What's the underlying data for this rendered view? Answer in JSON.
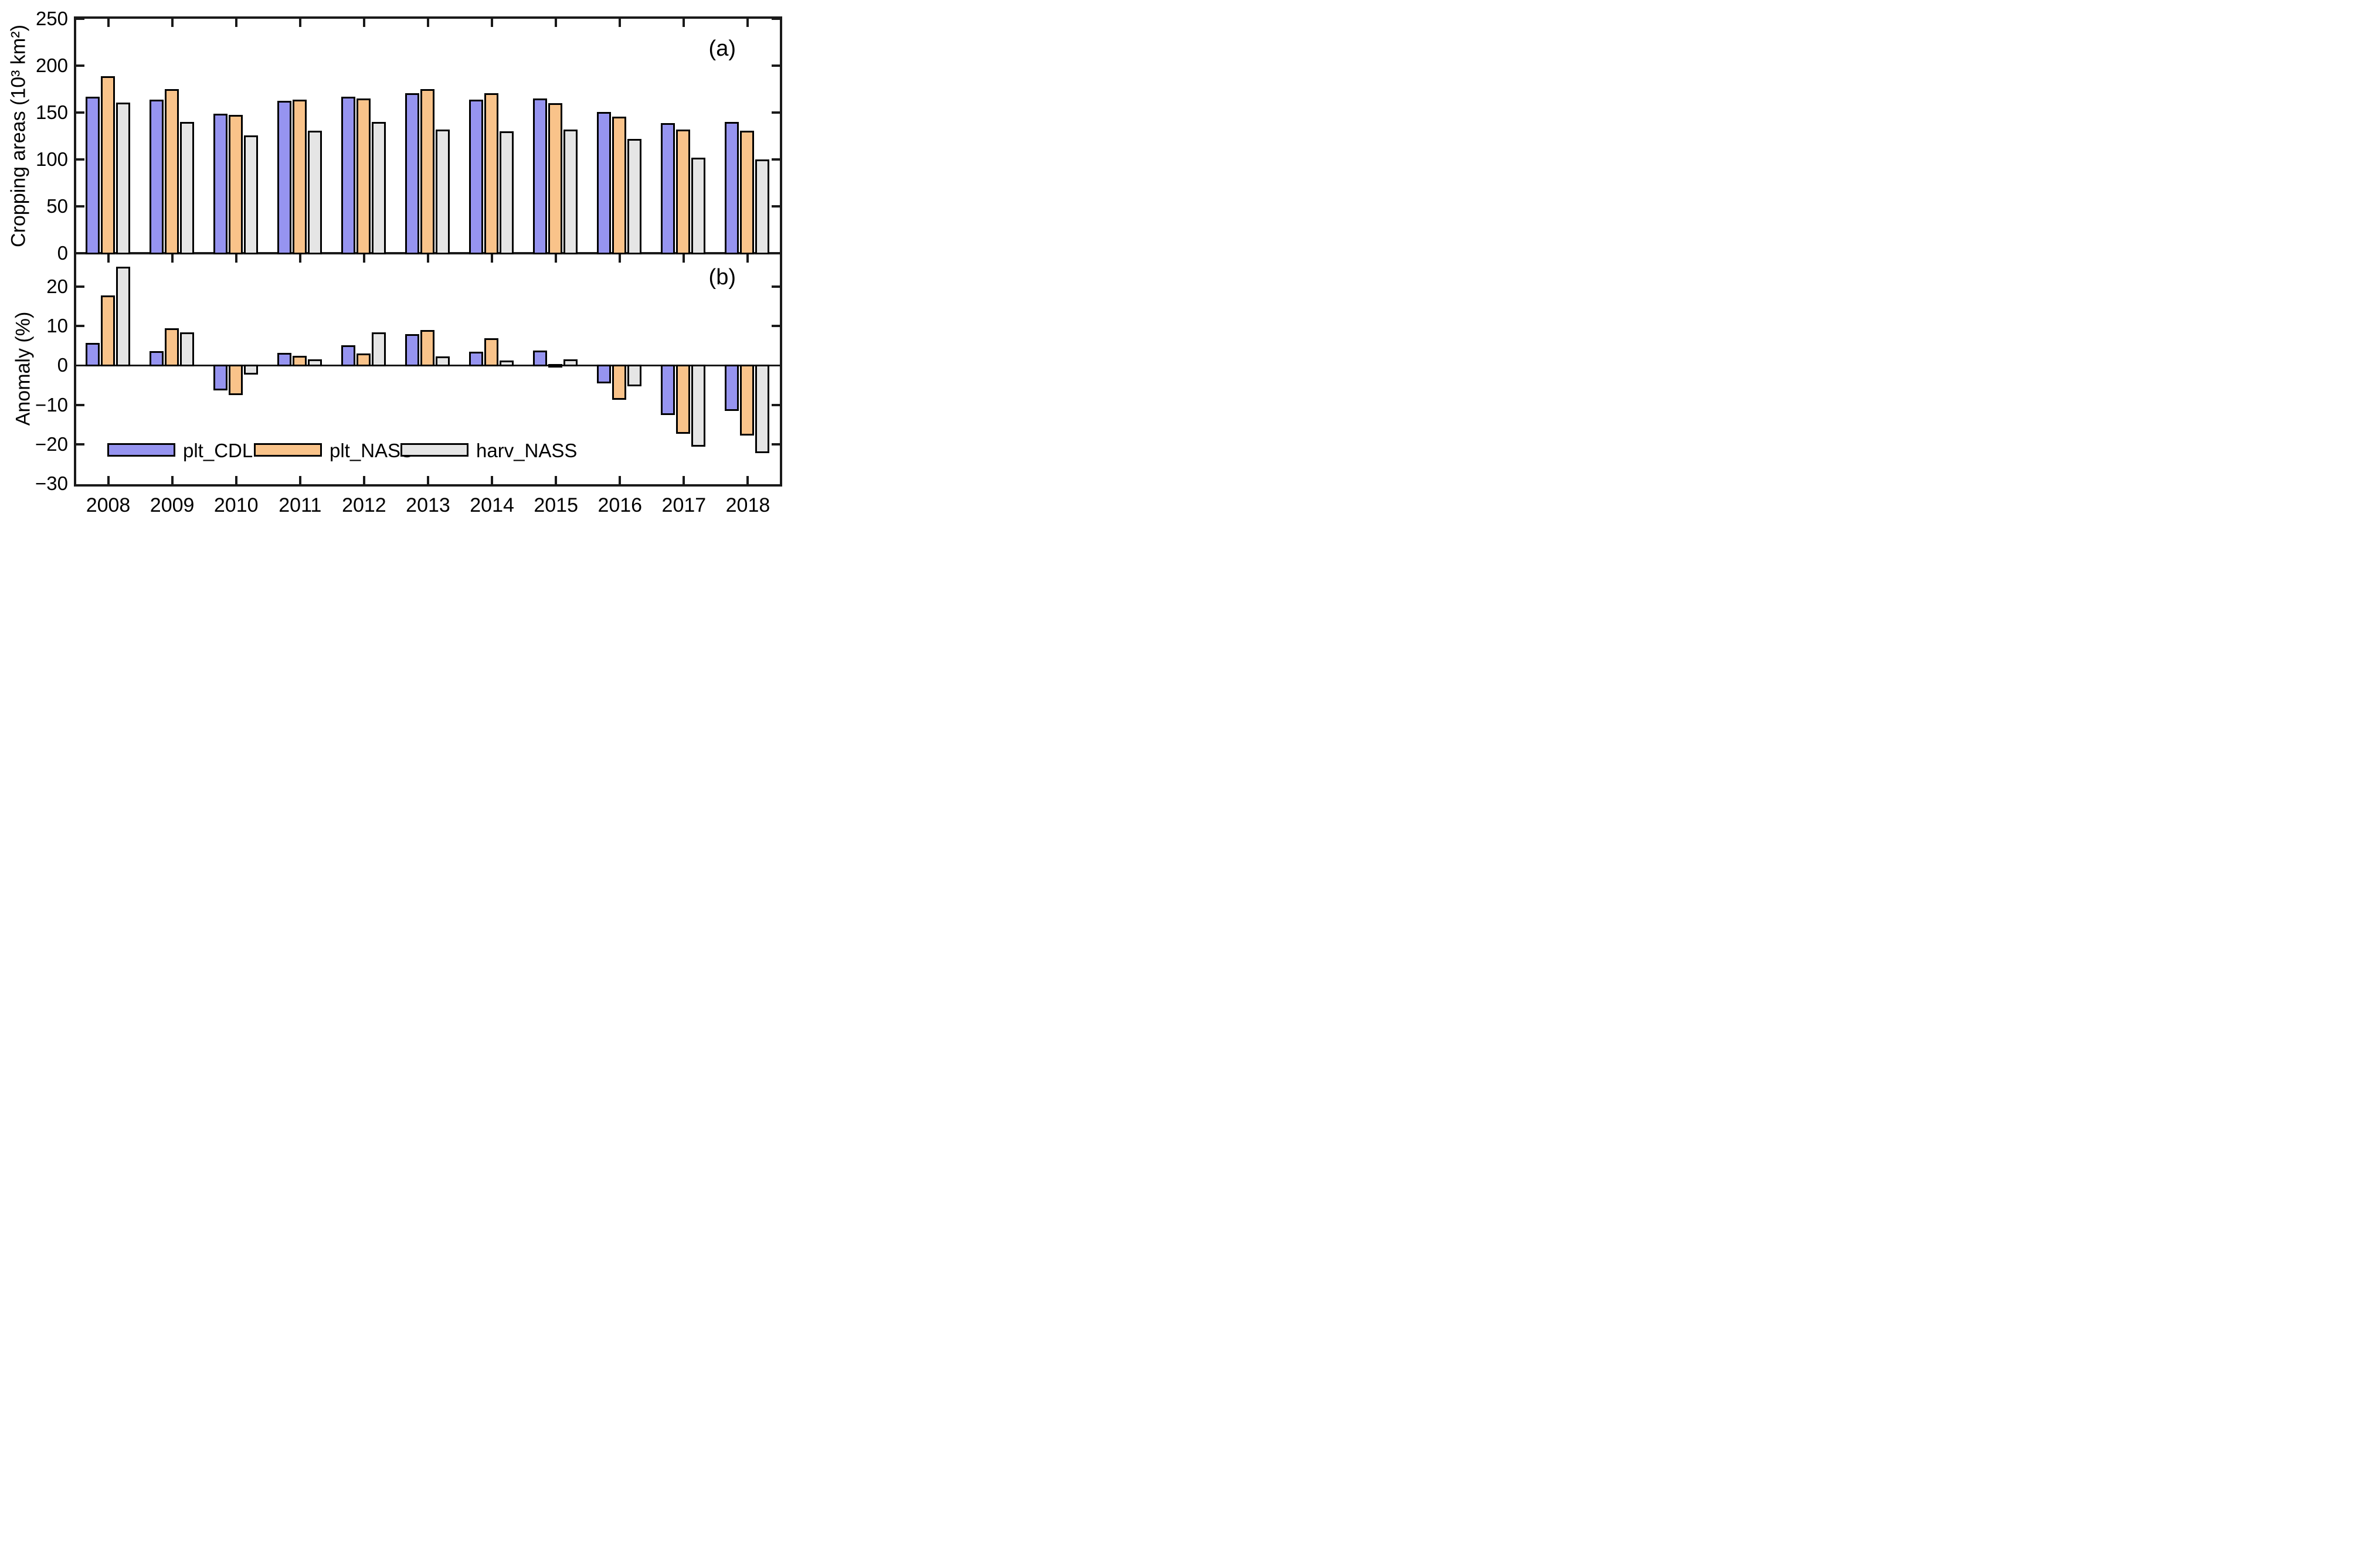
{
  "figure": {
    "panel_a_letter": "(a)",
    "panel_b_letter": "(b)",
    "ylabel_a": "Cropping areas (10³ km²)",
    "ylabel_b": "Anomaly (%)"
  },
  "legend": {
    "items": [
      {
        "label": "plt_CDL",
        "color": "#9694f0"
      },
      {
        "label": "plt_NASS",
        "color": "#f9c38a"
      },
      {
        "label": "harv_NASS",
        "color": "#e5e5e5"
      }
    ]
  },
  "colors": {
    "bar_border": "#000000",
    "axis": "#1a1a1a",
    "background": "#ffffff"
  },
  "chart_data": [
    {
      "type": "bar",
      "panel": "a",
      "title": "",
      "xlabel": "",
      "ylabel": "Cropping areas (10³ km²)",
      "categories": [
        "2008",
        "2009",
        "2010",
        "2011",
        "2012",
        "2013",
        "2014",
        "2015",
        "2016",
        "2017",
        "2018"
      ],
      "series": [
        {
          "name": "plt_CDL",
          "values": [
            168,
            165,
            150,
            164,
            168,
            172,
            165,
            166,
            152,
            140,
            141
          ]
        },
        {
          "name": "plt_NASS",
          "values": [
            190,
            176,
            149,
            165,
            166,
            176,
            172,
            161,
            147,
            133,
            132
          ]
        },
        {
          "name": "harv_NASS",
          "values": [
            162,
            141,
            127,
            132,
            141,
            133,
            131,
            133,
            123,
            103,
            101
          ]
        }
      ],
      "ylim": [
        0,
        250
      ],
      "yticks": [
        {
          "value": 0,
          "label": "0"
        },
        {
          "value": 50,
          "label": "50"
        },
        {
          "value": 100,
          "label": "100"
        },
        {
          "value": 150,
          "label": "150"
        },
        {
          "value": 200,
          "label": "200"
        },
        {
          "value": 250,
          "label": "250"
        }
      ],
      "grid": false,
      "legend_position": "none"
    },
    {
      "type": "bar",
      "panel": "b",
      "title": "",
      "xlabel": "",
      "ylabel": "Anomaly (%)",
      "categories": [
        "2008",
        "2009",
        "2010",
        "2011",
        "2012",
        "2013",
        "2014",
        "2015",
        "2016",
        "2017",
        "2018"
      ],
      "series": [
        {
          "name": "plt_CDL",
          "values": [
            5.7,
            3.7,
            -6.3,
            3.2,
            5.1,
            7.9,
            3.5,
            3.8,
            -4.6,
            -12.6,
            -11.5
          ]
        },
        {
          "name": "plt_NASS",
          "values": [
            17.8,
            9.4,
            -7.6,
            2.5,
            3.0,
            9.0,
            6.9,
            0.4,
            -8.7,
            -17.3,
            -17.8
          ]
        },
        {
          "name": "harv_NASS",
          "values": [
            25.1,
            8.4,
            -2.3,
            1.5,
            8.4,
            2.3,
            1.2,
            1.6,
            -5.3,
            -20.6,
            -22.2
          ]
        }
      ],
      "ylim": [
        -30,
        28.5
      ],
      "yticks": [
        {
          "value": 20,
          "label": "20"
        },
        {
          "value": 10,
          "label": "10"
        },
        {
          "value": 0,
          "label": "0"
        },
        {
          "value": -10,
          "label": "−10"
        },
        {
          "value": -20,
          "label": "−20"
        },
        {
          "value": -30,
          "label": "−30"
        }
      ],
      "grid": false,
      "legend_position": "inside-bottom-left"
    }
  ]
}
